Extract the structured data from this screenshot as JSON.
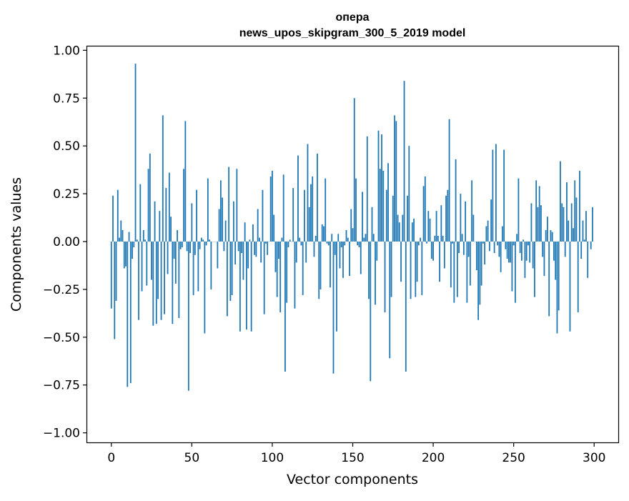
{
  "chart_data": {
    "type": "bar",
    "title_line1": "опера",
    "title_line2": "news_upos_skipgram_300_5_2019 model",
    "xlabel": "Vector components",
    "ylabel": "Components values",
    "xlim": [
      -15,
      315
    ],
    "ylim": [
      -1.05,
      1.02
    ],
    "xticks": [
      0,
      50,
      100,
      150,
      200,
      250,
      300
    ],
    "xtick_labels": [
      "0",
      "50",
      "100",
      "150",
      "200",
      "250",
      "300"
    ],
    "yticks": [
      1.0,
      0.75,
      0.5,
      0.25,
      0.0,
      -0.25,
      -0.5,
      -0.75,
      -1.0
    ],
    "ytick_labels": [
      "1.00",
      "0.75",
      "0.50",
      "0.25",
      "0.00",
      "−0.25",
      "−0.50",
      "−0.75",
      "−1.00"
    ],
    "bar_color": "#1f77b4",
    "values": [
      -0.35,
      0.24,
      -0.51,
      -0.31,
      0.27,
      0.02,
      0.11,
      0.06,
      -0.14,
      -0.13,
      -0.76,
      0.05,
      -0.74,
      -0.09,
      -0.03,
      0.93,
      0.01,
      -0.41,
      0.3,
      -0.26,
      0.06,
      0.01,
      -0.23,
      0.38,
      0.46,
      -0.2,
      -0.44,
      0.21,
      -0.43,
      -0.3,
      0.16,
      -0.41,
      0.66,
      -0.38,
      0.28,
      -0.17,
      0.36,
      0.13,
      -0.43,
      -0.09,
      -0.22,
      0.06,
      -0.4,
      -0.04,
      -0.03,
      0.38,
      0.63,
      -0.05,
      -0.78,
      -0.06,
      0.2,
      -0.28,
      -0.07,
      0.27,
      -0.26,
      -0.04,
      0.02,
      0.01,
      -0.48,
      -0.02,
      0.33,
      0.01,
      -0.25,
      0.0,
      0.0,
      0.0,
      -0.14,
      0.17,
      0.32,
      0.23,
      -0.05,
      0.11,
      -0.39,
      0.39,
      -0.31,
      -0.28,
      0.21,
      -0.12,
      0.38,
      -0.05,
      -0.47,
      -0.06,
      -0.2,
      0.1,
      -0.46,
      -0.14,
      0.01,
      -0.47,
      0.09,
      -0.07,
      -0.08,
      0.17,
      0.02,
      -0.11,
      0.27,
      -0.38,
      -0.01,
      -0.07,
      0.0,
      0.34,
      0.37,
      0.14,
      -0.16,
      -0.29,
      -0.09,
      -0.37,
      0.02,
      0.35,
      -0.68,
      -0.32,
      -0.03,
      0.01,
      0.0,
      0.28,
      -0.35,
      -0.11,
      0.45,
      0.02,
      -0.02,
      -0.28,
      0.27,
      -0.11,
      0.51,
      0.18,
      0.3,
      0.34,
      -0.08,
      0.03,
      0.46,
      -0.3,
      -0.25,
      0.09,
      0.08,
      0.33,
      -0.01,
      -0.02,
      -0.24,
      0.04,
      -0.69,
      -0.07,
      -0.47,
      0.04,
      -0.14,
      -0.03,
      -0.19,
      -0.02,
      0.06,
      0.02,
      -0.18,
      0.17,
      0.07,
      0.75,
      0.33,
      -0.02,
      -0.03,
      -0.17,
      0.26,
      0.02,
      0.04,
      0.55,
      -0.3,
      -0.73,
      0.18,
      0.04,
      -0.33,
      -0.1,
      0.58,
      0.38,
      0.56,
      0.37,
      -0.37,
      0.27,
      0.41,
      -0.61,
      -0.29,
      0.24,
      0.66,
      0.63,
      0.14,
      0.1,
      -0.21,
      0.14,
      0.84,
      -0.68,
      0.24,
      0.5,
      -0.3,
      0.1,
      0.12,
      -0.29,
      -0.21,
      -0.02,
      0.02,
      -0.28,
      0.29,
      0.34,
      -0.01,
      0.16,
      0.12,
      -0.09,
      -0.1,
      0.03,
      0.16,
      0.03,
      -0.21,
      0.19,
      0.03,
      -0.14,
      0.24,
      0.27,
      0.64,
      -0.24,
      -0.01,
      -0.32,
      0.43,
      -0.29,
      -0.06,
      0.25,
      0.04,
      -0.07,
      0.21,
      -0.32,
      -0.08,
      -0.23,
      0.32,
      0.14,
      0.0,
      -0.15,
      -0.41,
      -0.33,
      -0.23,
      -0.01,
      -0.12,
      0.08,
      0.11,
      -0.05,
      0.22,
      0.48,
      -0.06,
      0.51,
      -0.02,
      -0.08,
      -0.16,
      0.08,
      0.48,
      -0.04,
      -0.09,
      -0.11,
      -0.11,
      -0.26,
      -0.02,
      -0.32,
      0.04,
      0.33,
      -0.06,
      -0.1,
      0.01,
      -0.19,
      -0.1,
      -0.02,
      -0.11,
      0.2,
      -0.14,
      -0.29,
      0.32,
      0.18,
      0.29,
      0.19,
      -0.08,
      -0.18,
      0.06,
      0.13,
      -0.39,
      0.06,
      0.05,
      -0.1,
      -0.2,
      -0.48,
      -0.36,
      0.42,
      0.2,
      0.18,
      -0.08,
      0.31,
      0.11,
      -0.47,
      0.2,
      0.07,
      0.32,
      0.23,
      -0.37,
      0.37,
      -0.09,
      0.11,
      0.01,
      0.16,
      -0.19,
      0.0,
      -0.04,
      0.18
    ]
  }
}
